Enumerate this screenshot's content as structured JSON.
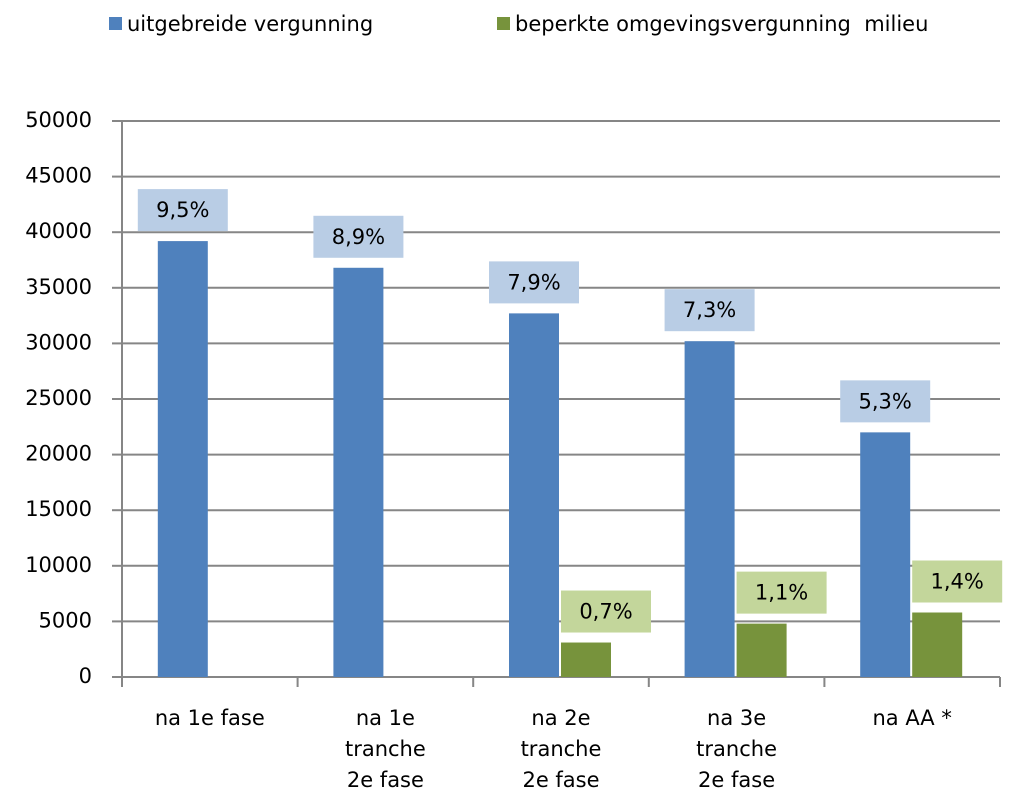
{
  "chart_data": {
    "type": "bar",
    "categories": [
      "na 1e fase",
      "na 1e\ntranche\n2e fase",
      "na 2e\ntranche\n2e fase",
      "na 3e\ntranche\n2e fase",
      "na AA *"
    ],
    "series": [
      {
        "name": "uitgebreide vergunning",
        "color": "#4f81bd",
        "label_color": "#b9cde5",
        "values": [
          39200,
          36800,
          32700,
          30200,
          22000
        ],
        "annotations": [
          "9,5%",
          "8,9%",
          "7,9%",
          "7,3%",
          "5,3%"
        ]
      },
      {
        "name": "beperkte omgevingsvergunning  milieu",
        "color": "#77933c",
        "label_color": "#c3d69b",
        "values": [
          null,
          null,
          3100,
          4800,
          5800
        ],
        "annotations": [
          null,
          null,
          "0,7%",
          "1,1%",
          "1,4%"
        ]
      }
    ],
    "ylim": [
      0,
      50000
    ],
    "yticks": [
      0,
      5000,
      10000,
      15000,
      20000,
      25000,
      30000,
      35000,
      40000,
      45000,
      50000
    ],
    "grid": true,
    "legend": "top"
  }
}
